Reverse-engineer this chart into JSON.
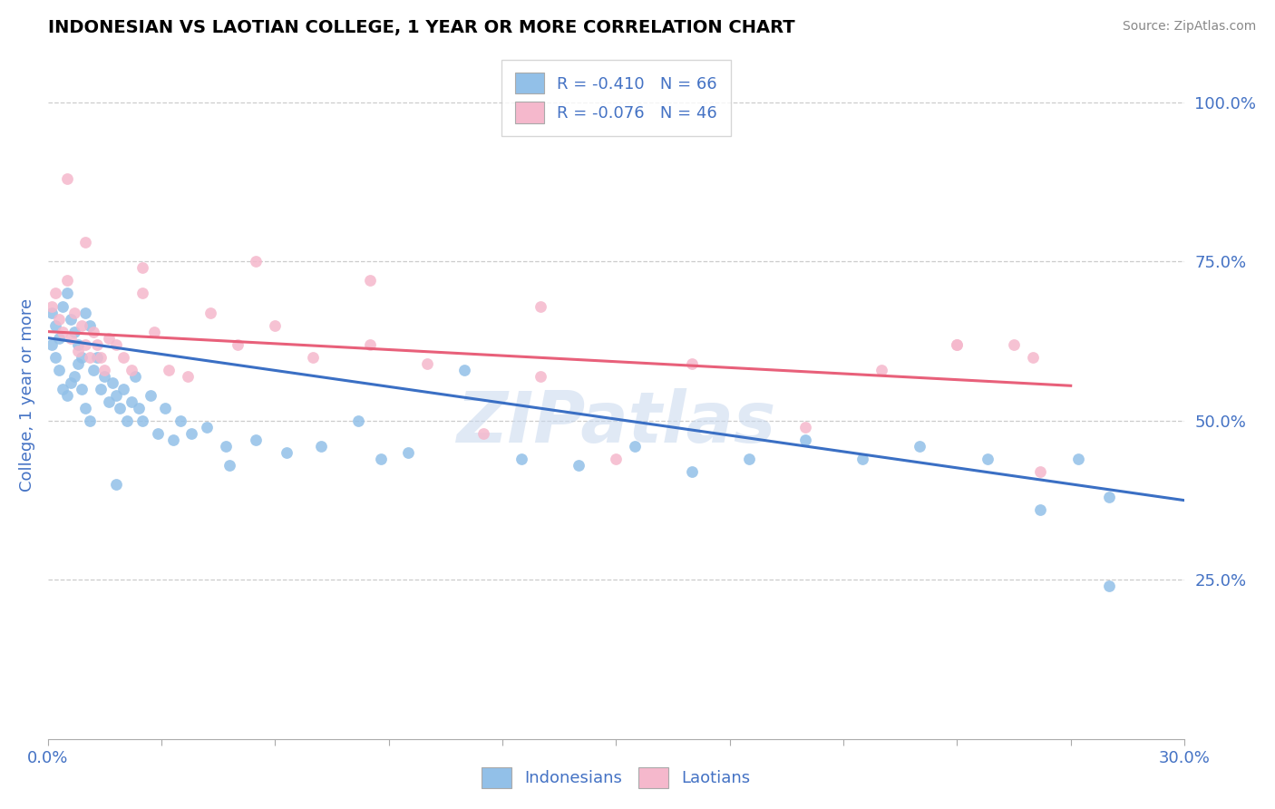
{
  "title": "INDONESIAN VS LAOTIAN COLLEGE, 1 YEAR OR MORE CORRELATION CHART",
  "source": "Source: ZipAtlas.com",
  "ylabel": "College, 1 year or more",
  "xlim": [
    0.0,
    0.3
  ],
  "ylim": [
    0.0,
    1.08
  ],
  "yticks": [
    0.25,
    0.5,
    0.75,
    1.0
  ],
  "ytick_labels": [
    "25.0%",
    "50.0%",
    "75.0%",
    "100.0%"
  ],
  "xticks": [
    0.0,
    0.03,
    0.06,
    0.09,
    0.12,
    0.15,
    0.18,
    0.21,
    0.24,
    0.27,
    0.3
  ],
  "xtick_labels": [
    "0.0%",
    "",
    "",
    "",
    "",
    "",
    "",
    "",
    "",
    "",
    "30.0%"
  ],
  "blue_color": "#92C0E8",
  "pink_color": "#F5B8CC",
  "blue_line_color": "#3A6FC4",
  "pink_line_color": "#E8607A",
  "legend_R_blue": "R = -0.410",
  "legend_N_blue": "N = 66",
  "legend_R_pink": "R = -0.076",
  "legend_N_pink": "N = 46",
  "blue_trend_x": [
    0.0,
    0.3
  ],
  "blue_trend_y": [
    0.63,
    0.375
  ],
  "pink_trend_x": [
    0.0,
    0.27
  ],
  "pink_trend_y": [
    0.64,
    0.555
  ],
  "watermark": "ZIPatlas",
  "indonesians_x": [
    0.001,
    0.001,
    0.002,
    0.002,
    0.003,
    0.003,
    0.004,
    0.004,
    0.005,
    0.005,
    0.006,
    0.006,
    0.007,
    0.007,
    0.008,
    0.008,
    0.009,
    0.009,
    0.01,
    0.01,
    0.011,
    0.011,
    0.012,
    0.013,
    0.014,
    0.015,
    0.016,
    0.017,
    0.018,
    0.019,
    0.02,
    0.021,
    0.022,
    0.023,
    0.024,
    0.025,
    0.027,
    0.029,
    0.031,
    0.033,
    0.035,
    0.038,
    0.042,
    0.047,
    0.055,
    0.063,
    0.072,
    0.082,
    0.095,
    0.11,
    0.125,
    0.14,
    0.155,
    0.17,
    0.185,
    0.2,
    0.215,
    0.23,
    0.248,
    0.262,
    0.272,
    0.28,
    0.088,
    0.048,
    0.018,
    0.28
  ],
  "indonesians_y": [
    0.67,
    0.62,
    0.65,
    0.6,
    0.63,
    0.58,
    0.68,
    0.55,
    0.7,
    0.54,
    0.66,
    0.56,
    0.64,
    0.57,
    0.62,
    0.59,
    0.6,
    0.55,
    0.67,
    0.52,
    0.65,
    0.5,
    0.58,
    0.6,
    0.55,
    0.57,
    0.53,
    0.56,
    0.54,
    0.52,
    0.55,
    0.5,
    0.53,
    0.57,
    0.52,
    0.5,
    0.54,
    0.48,
    0.52,
    0.47,
    0.5,
    0.48,
    0.49,
    0.46,
    0.47,
    0.45,
    0.46,
    0.5,
    0.45,
    0.58,
    0.44,
    0.43,
    0.46,
    0.42,
    0.44,
    0.47,
    0.44,
    0.46,
    0.44,
    0.36,
    0.44,
    0.38,
    0.44,
    0.43,
    0.4,
    0.24
  ],
  "laotians_x": [
    0.001,
    0.002,
    0.003,
    0.004,
    0.005,
    0.006,
    0.007,
    0.008,
    0.009,
    0.01,
    0.011,
    0.012,
    0.013,
    0.014,
    0.015,
    0.016,
    0.018,
    0.02,
    0.022,
    0.025,
    0.028,
    0.032,
    0.037,
    0.043,
    0.05,
    0.06,
    0.07,
    0.085,
    0.1,
    0.115,
    0.13,
    0.15,
    0.17,
    0.2,
    0.22,
    0.24,
    0.255,
    0.262,
    0.005,
    0.01,
    0.025,
    0.055,
    0.085,
    0.13,
    0.24,
    0.26
  ],
  "laotians_y": [
    0.68,
    0.7,
    0.66,
    0.64,
    0.72,
    0.63,
    0.67,
    0.61,
    0.65,
    0.62,
    0.6,
    0.64,
    0.62,
    0.6,
    0.58,
    0.63,
    0.62,
    0.6,
    0.58,
    0.7,
    0.64,
    0.58,
    0.57,
    0.67,
    0.62,
    0.65,
    0.6,
    0.62,
    0.59,
    0.48,
    0.57,
    0.44,
    0.59,
    0.49,
    0.58,
    0.62,
    0.62,
    0.42,
    0.88,
    0.78,
    0.74,
    0.75,
    0.72,
    0.68,
    0.62,
    0.6
  ]
}
